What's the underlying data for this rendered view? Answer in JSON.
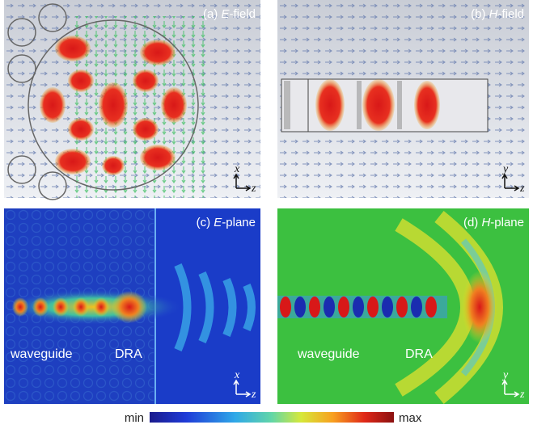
{
  "panels": [
    {
      "label_parts": [
        "(a) ",
        "E",
        "-field"
      ],
      "axes": [
        "x",
        "z"
      ]
    },
    {
      "label_parts": [
        "(b) ",
        "H",
        "-field"
      ],
      "axes": [
        "y",
        "z"
      ]
    },
    {
      "label_parts": [
        "(c) ",
        "E",
        "-plane"
      ],
      "axes": [
        "x",
        "z"
      ],
      "annotations": [
        "waveguide",
        "DRA"
      ]
    },
    {
      "label_parts": [
        "(d) ",
        "H",
        "-plane"
      ],
      "axes": [
        "y",
        "z"
      ],
      "annotations": [
        "waveguide",
        "DRA"
      ]
    }
  ],
  "colorbar": {
    "min_label": "min",
    "max_label": "max"
  }
}
